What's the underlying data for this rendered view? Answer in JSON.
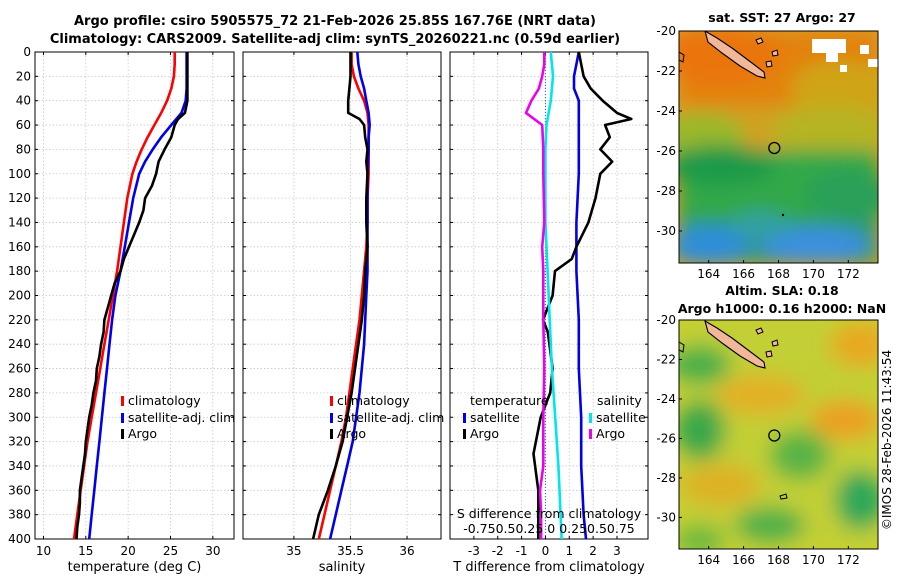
{
  "header": {
    "title_line1": "Argo profile: csiro 5905575_72 21-Feb-2026 25.85S 167.76E (NRT data)",
    "title_line2": "Climatology: CARS2009. Satellite-adj clim: synTS_20260221.nc (0.59d earlier)"
  },
  "maps": {
    "sst_title": "sat. SST: 27 Argo: 27",
    "sla_title_line1": "Altim. SLA: 0.18",
    "sla_title_line2": "Argo h1000: 0.16 h2000: NaN",
    "lon_ticks": [
      164,
      166,
      168,
      170,
      172
    ],
    "lat_ticks": [
      -20,
      -22,
      -24,
      -26,
      -28,
      -30
    ],
    "lon_range": [
      162.3,
      173.7
    ],
    "lat_range": [
      -20,
      -31.6
    ],
    "argo_position": {
      "lon": 167.76,
      "lat": -25.85
    },
    "colors": {
      "sst_warm": "#e07a10",
      "sst_mid": "#c8b020",
      "sst_cool": "#22a050",
      "sst_cold": "#3a8fe0",
      "sla_high": "#e8a020",
      "sla_mid": "#c8d030",
      "sla_low": "#40b050",
      "island": "#f0b898"
    }
  },
  "footer": {
    "timestamp": "©IMOS 28-Feb-2026 11:43:54"
  },
  "chart_data": [
    {
      "type": "line",
      "xlabel": "temperature (deg C)",
      "ylabel": "",
      "xlim": [
        9,
        32.5
      ],
      "ylim": [
        400,
        0
      ],
      "xticks": [
        10,
        15,
        20,
        25,
        30
      ],
      "yticks": [
        0,
        20,
        40,
        60,
        80,
        100,
        120,
        140,
        160,
        180,
        200,
        220,
        240,
        260,
        280,
        300,
        320,
        340,
        360,
        380,
        400
      ],
      "grid": true,
      "legend": {
        "position": "bottom-right",
        "labels": [
          "climatology",
          "satellite-adj. clim",
          "Argo"
        ]
      },
      "series": [
        {
          "name": "climatology",
          "color": "#ff0000",
          "depth": [
            0,
            10,
            20,
            30,
            40,
            50,
            60,
            70,
            80,
            90,
            100,
            120,
            140,
            160,
            180,
            200,
            220,
            240,
            260,
            280,
            300,
            320,
            340,
            360,
            380,
            400
          ],
          "values": [
            25.5,
            25.5,
            25.4,
            25.1,
            24.6,
            23.9,
            23.1,
            22.3,
            21.6,
            21.0,
            20.5,
            19.9,
            19.5,
            19.1,
            18.7,
            18.2,
            17.7,
            17.2,
            16.7,
            16.2,
            15.7,
            15.2,
            14.8,
            14.4,
            14.0,
            13.6
          ]
        },
        {
          "name": "satellite-adj. clim",
          "color": "#0000ee",
          "depth": [
            0,
            10,
            20,
            30,
            40,
            50,
            60,
            70,
            80,
            90,
            100,
            120,
            140,
            160,
            180,
            200,
            220,
            240,
            260,
            280,
            300,
            320,
            340,
            360,
            380,
            400
          ],
          "values": [
            26.9,
            26.9,
            26.9,
            26.9,
            26.8,
            26.3,
            25.1,
            23.9,
            22.9,
            22.0,
            21.3,
            20.6,
            20.1,
            19.6,
            19.1,
            18.5,
            18.1,
            17.8,
            17.5,
            17.2,
            16.9,
            16.6,
            16.3,
            16.0,
            15.7,
            15.4
          ]
        },
        {
          "name": "Argo",
          "color": "#000000",
          "depth": [
            0,
            10,
            20,
            30,
            40,
            50,
            55,
            60,
            70,
            80,
            90,
            100,
            110,
            120,
            130,
            140,
            150,
            160,
            170,
            180,
            190,
            200,
            210,
            220,
            230,
            240,
            250,
            260,
            270,
            280,
            290,
            300,
            310,
            320,
            330,
            340,
            350,
            360,
            370,
            380,
            390,
            400
          ],
          "values": [
            27.0,
            27.0,
            27.0,
            27.0,
            27.0,
            26.7,
            25.9,
            25.5,
            25.1,
            24.3,
            23.6,
            23.3,
            22.8,
            22.0,
            21.8,
            21.3,
            20.7,
            20.1,
            19.5,
            19.1,
            18.4,
            18.0,
            17.6,
            17.2,
            17.1,
            16.8,
            16.6,
            16.3,
            16.2,
            15.9,
            15.7,
            15.4,
            15.2,
            15.0,
            14.9,
            14.7,
            14.5,
            14.3,
            14.3,
            14.2,
            14.0,
            13.9
          ]
        }
      ]
    },
    {
      "type": "line",
      "xlabel": "salinity",
      "xlim": [
        34.55,
        36.3
      ],
      "ylim": [
        400,
        0
      ],
      "xticks": [
        35,
        35.5,
        36
      ],
      "grid": true,
      "legend": {
        "position": "bottom-left",
        "labels": [
          "climatology",
          "satellite-adj. clim",
          "Argo"
        ]
      },
      "series": [
        {
          "name": "climatology",
          "color": "#ff0000",
          "depth": [
            0,
            10,
            20,
            30,
            40,
            50,
            60,
            70,
            80,
            100,
            120,
            140,
            160,
            180,
            200,
            220,
            240,
            260,
            280,
            300,
            320,
            340,
            360,
            380,
            400
          ],
          "values": [
            35.51,
            35.51,
            35.53,
            35.57,
            35.62,
            35.65,
            35.66,
            35.66,
            35.66,
            35.66,
            35.65,
            35.65,
            35.64,
            35.62,
            35.6,
            35.58,
            35.55,
            35.52,
            35.49,
            35.46,
            35.42,
            35.37,
            35.32,
            35.27,
            35.22
          ]
        },
        {
          "name": "satellite-adj. clim",
          "color": "#0000ee",
          "depth": [
            0,
            10,
            20,
            30,
            40,
            50,
            60,
            70,
            80,
            100,
            120,
            140,
            160,
            180,
            200,
            220,
            240,
            260,
            280,
            300,
            320,
            340,
            360,
            380,
            400
          ],
          "values": [
            35.56,
            35.57,
            35.59,
            35.62,
            35.64,
            35.66,
            35.67,
            35.66,
            35.66,
            35.65,
            35.65,
            35.65,
            35.65,
            35.65,
            35.64,
            35.63,
            35.62,
            35.6,
            35.58,
            35.55,
            35.52,
            35.47,
            35.42,
            35.37,
            35.32
          ]
        },
        {
          "name": "Argo",
          "color": "#000000",
          "depth": [
            0,
            10,
            20,
            30,
            40,
            50,
            55,
            60,
            70,
            80,
            90,
            100,
            120,
            140,
            160,
            180,
            200,
            220,
            240,
            260,
            280,
            300,
            320,
            340,
            360,
            380,
            400
          ],
          "values": [
            35.5,
            35.5,
            35.5,
            35.49,
            35.48,
            35.48,
            35.58,
            35.62,
            35.63,
            35.65,
            35.64,
            35.65,
            35.64,
            35.64,
            35.65,
            35.63,
            35.62,
            35.6,
            35.57,
            35.54,
            35.51,
            35.47,
            35.43,
            35.37,
            35.3,
            35.22,
            35.17
          ]
        }
      ]
    },
    {
      "type": "line",
      "xlabel": "T difference from climatology",
      "xlabel_top_line1": "S difference from climatology",
      "xlabel_top_line2": "-0.750.50.25 0 0.250.50.75",
      "xlim": [
        -4,
        4.3
      ],
      "ylim": [
        400,
        0
      ],
      "xticks": [
        -3,
        -2,
        -1,
        0,
        1,
        2,
        3
      ],
      "zero_line": true,
      "grid": true,
      "legend_left": {
        "title": "temperature",
        "labels": [
          "satellite",
          "Argo"
        ]
      },
      "legend_right": {
        "title": "salinity",
        "labels": [
          "satellite",
          "Argo"
        ]
      },
      "series": [
        {
          "name": "temperature satellite",
          "color": "#0000ee",
          "depth": [
            0,
            10,
            20,
            30,
            40,
            50,
            60,
            80,
            100,
            140,
            180,
            220,
            260,
            300,
            340,
            380,
            400
          ],
          "values": [
            1.4,
            1.3,
            1.2,
            1.2,
            1.4,
            1.4,
            1.4,
            1.4,
            1.4,
            1.3,
            1.3,
            1.4,
            1.4,
            1.5,
            1.5,
            1.6,
            1.7
          ]
        },
        {
          "name": "temperature Argo",
          "color": "#000000",
          "depth": [
            0,
            10,
            20,
            30,
            40,
            50,
            55,
            60,
            70,
            80,
            90,
            100,
            120,
            140,
            160,
            170,
            180,
            200,
            220,
            230,
            260,
            280,
            300,
            330,
            360,
            400
          ],
          "values": [
            1.4,
            1.5,
            1.6,
            1.9,
            2.4,
            3.0,
            3.6,
            2.5,
            2.7,
            2.3,
            2.8,
            2.3,
            2.1,
            1.8,
            1.3,
            1.1,
            0.4,
            0.3,
            -0.1,
            0.1,
            0.3,
            0.2,
            -0.2,
            -0.5,
            -0.3,
            -0.3
          ]
        },
        {
          "name": "salinity satellite",
          "color": "#00e5ee",
          "depth": [
            0,
            10,
            20,
            40,
            60,
            80,
            100,
            140,
            180,
            220,
            260,
            300,
            340,
            380,
            400
          ],
          "values": [
            0.05,
            0.06,
            0.07,
            0.05,
            0.01,
            0.0,
            0.0,
            0.0,
            0.02,
            0.04,
            0.06,
            0.09,
            0.12,
            0.14,
            0.15
          ]
        },
        {
          "name": "salinity Argo",
          "color": "#ee00ee",
          "depth": [
            0,
            10,
            20,
            30,
            40,
            50,
            60,
            80,
            100,
            140,
            160,
            180,
            220,
            260,
            300,
            340,
            360,
            380,
            400
          ],
          "values": [
            -0.01,
            -0.01,
            -0.03,
            -0.06,
            -0.13,
            -0.18,
            -0.03,
            -0.02,
            -0.02,
            -0.01,
            -0.03,
            -0.02,
            -0.02,
            -0.01,
            -0.02,
            -0.02,
            -0.05,
            -0.04,
            -0.04
          ]
        }
      ]
    }
  ]
}
